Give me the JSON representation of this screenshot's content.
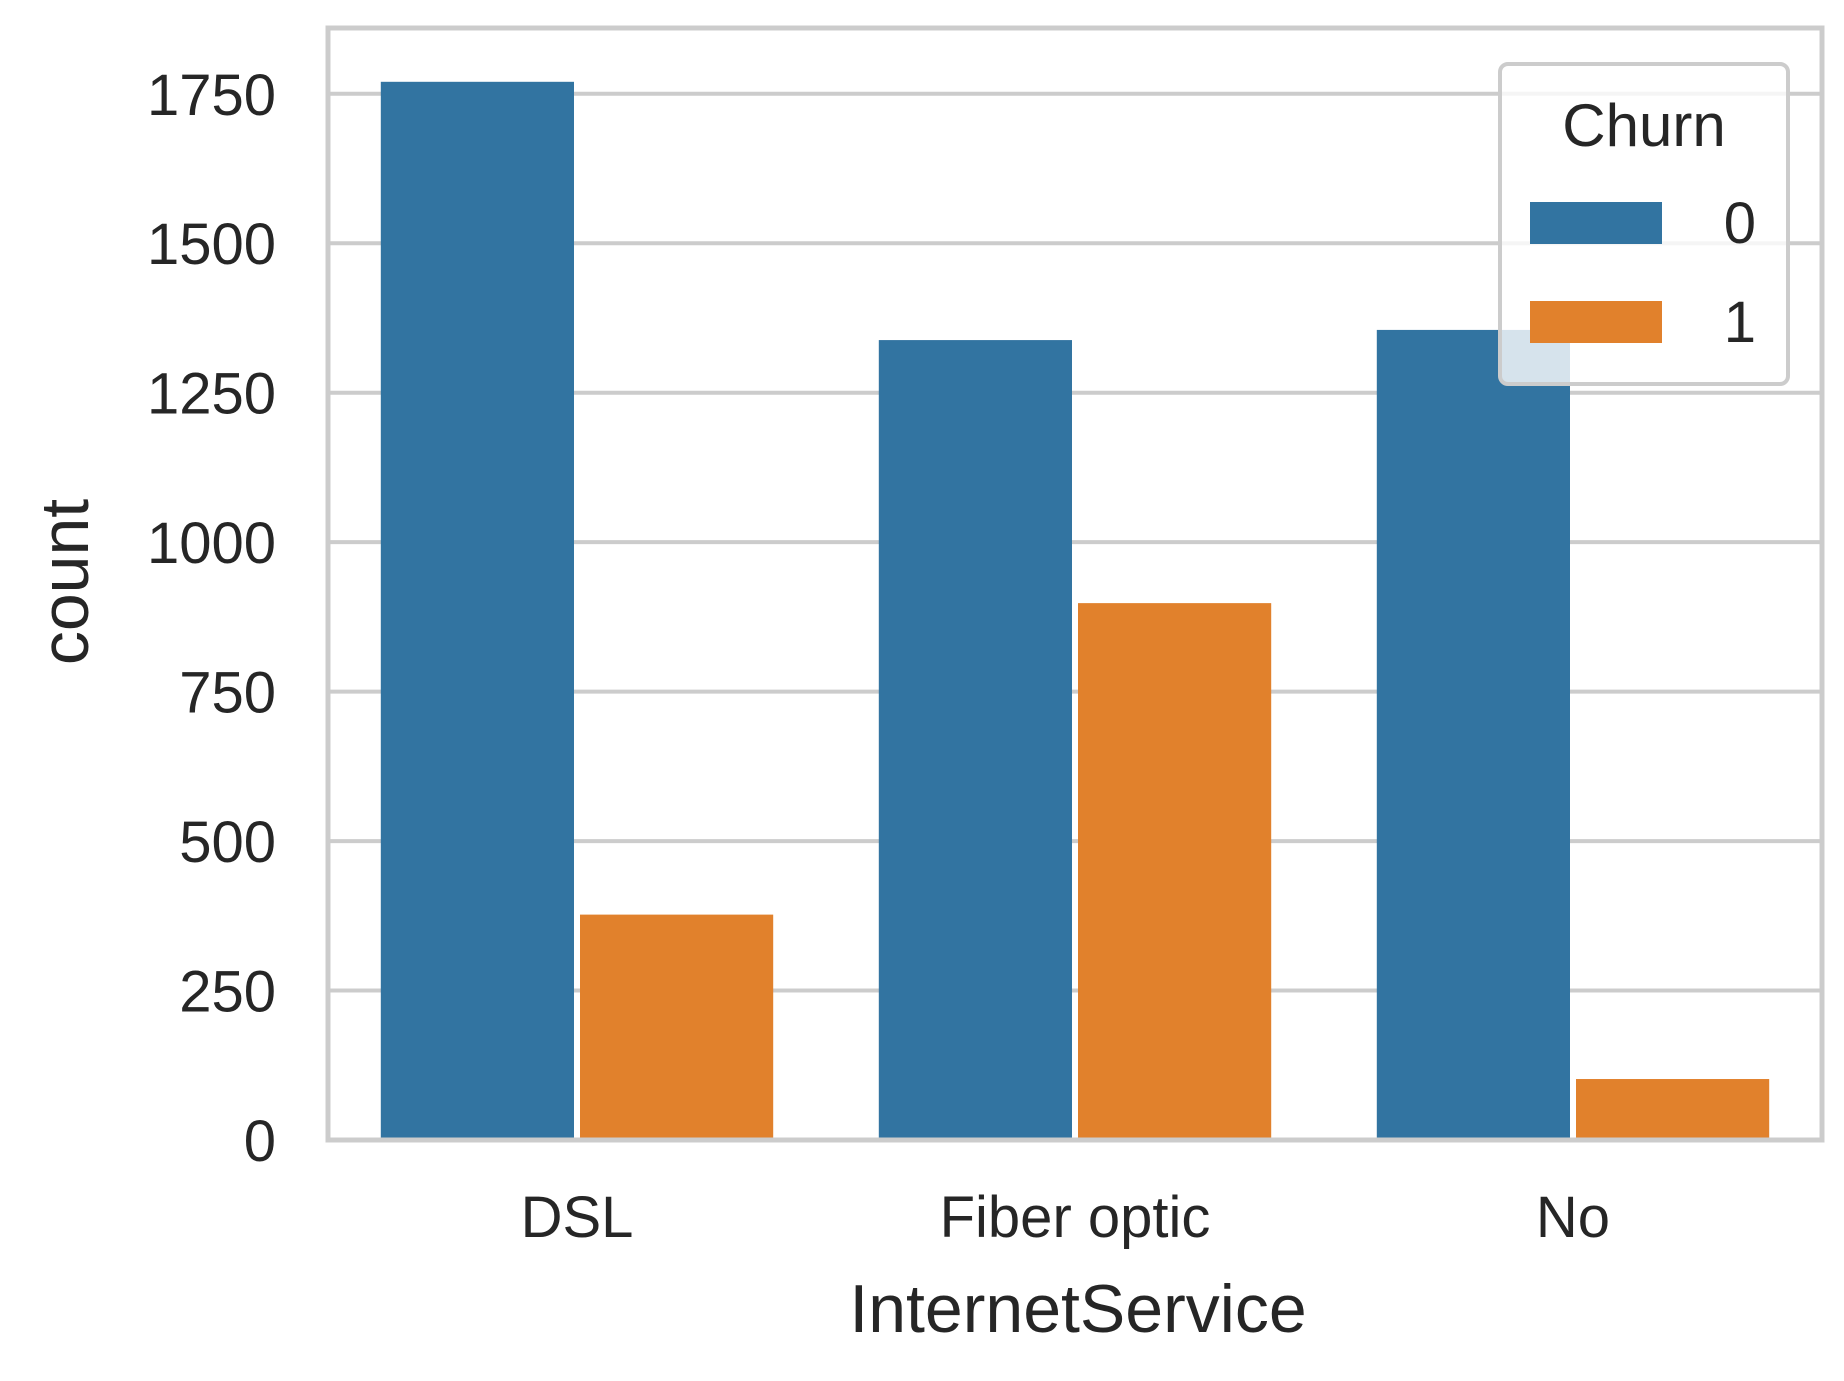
{
  "chart_data": {
    "type": "bar",
    "title": "",
    "xlabel": "InternetService",
    "ylabel": "count",
    "categories": [
      "DSL",
      "Fiber optic",
      "No"
    ],
    "series": [
      {
        "name": "0",
        "values": [
          1770,
          1338,
          1355
        ]
      },
      {
        "name": "1",
        "values": [
          377,
          898,
          102
        ]
      }
    ],
    "ylim": [
      0,
      1860
    ],
    "yticks": [
      0,
      250,
      500,
      750,
      1000,
      1250,
      1500,
      1750
    ],
    "grid": "horizontal",
    "legend": {
      "title": "Churn",
      "position": "top-right"
    },
    "colors": {
      "series": [
        "#3274a1",
        "#e1812c"
      ],
      "grid": "#cccccc",
      "frame": "#cccccc",
      "text": "#262626"
    }
  }
}
